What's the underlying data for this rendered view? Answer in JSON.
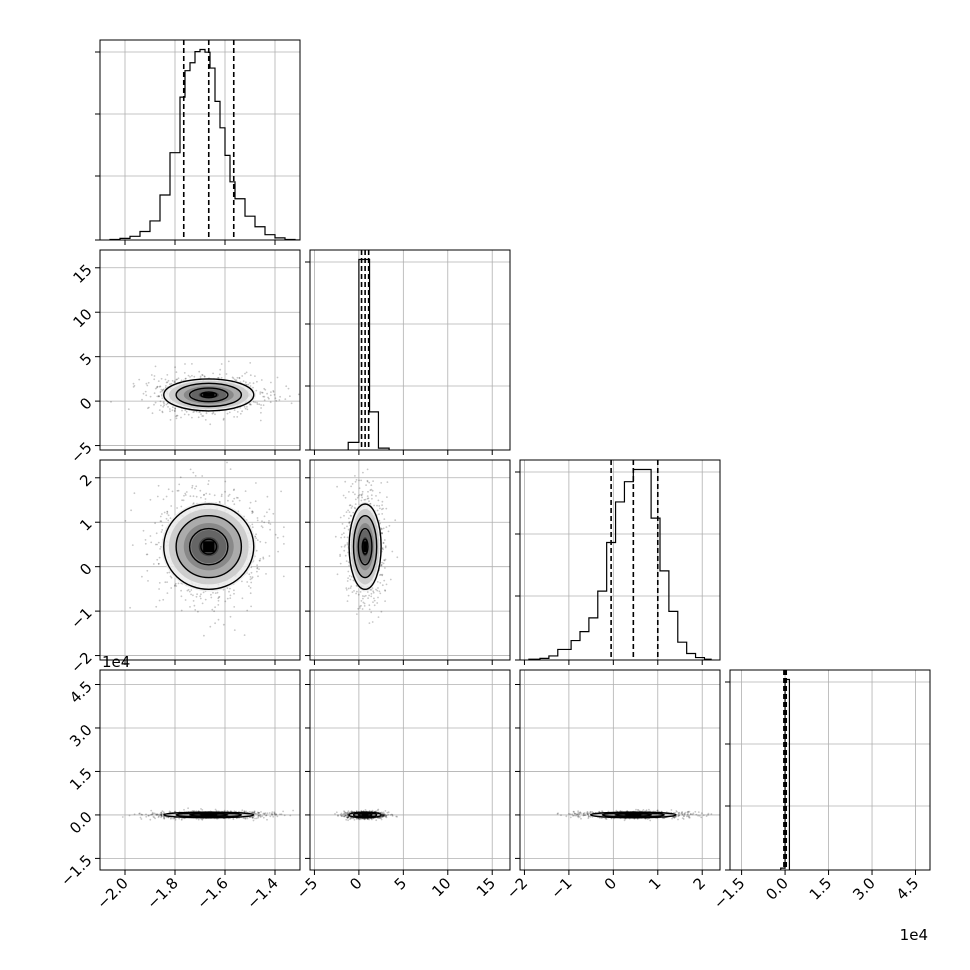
{
  "chart_data": {
    "type": "corner",
    "grid": true,
    "parameters": [
      {
        "range": [
          -2.1,
          -1.3
        ],
        "ticks": [
          -2.0,
          -1.8,
          -1.6,
          -1.4
        ],
        "tick_labels": [
          "−2.0",
          "−1.8",
          "−1.6",
          "−1.4"
        ],
        "offset_label": ""
      },
      {
        "range": [
          -5.5,
          17
        ],
        "ticks": [
          -5,
          0,
          5,
          10,
          15
        ],
        "tick_labels": [
          "−5",
          "0",
          "5",
          "10",
          "15"
        ],
        "offset_label": ""
      },
      {
        "range": [
          -2.1,
          2.4
        ],
        "ticks": [
          -2,
          -1,
          0,
          1,
          2
        ],
        "tick_labels": [
          "−2",
          "−1",
          "0",
          "1",
          "2"
        ],
        "offset_label": ""
      },
      {
        "range": [
          -1.9,
          5.0
        ],
        "ticks": [
          -1.5,
          0.0,
          1.5,
          3.0,
          4.5
        ],
        "tick_labels": [
          "−1.5",
          "0.0",
          "1.5",
          "3.0",
          "4.5"
        ],
        "offset_label": "1e4"
      }
    ],
    "histograms": [
      {
        "bin_edges": [
          -2.06,
          -2.02,
          -1.98,
          -1.94,
          -1.9,
          -1.86,
          -1.82,
          -1.78,
          -1.76,
          -1.74,
          -1.72,
          -1.7,
          -1.68,
          -1.66,
          -1.64,
          -1.62,
          -1.6,
          -1.58,
          -1.56,
          -1.52,
          -1.48,
          -1.44,
          -1.4,
          -1.36,
          -1.32
        ],
        "counts": [
          1,
          3,
          7,
          16,
          36,
          85,
          165,
          270,
          320,
          335,
          356,
          360,
          355,
          325,
          262,
          212,
          160,
          110,
          78,
          45,
          25,
          10,
          4,
          1
        ],
        "quantiles": [
          -1.765,
          -1.665,
          -1.565
        ]
      },
      {
        "bin_edges": [
          -1.2,
          0.0,
          1.2,
          2.2,
          3.4
        ],
        "counts": [
          4,
          100,
          20,
          1
        ],
        "quantiles": [
          0.3,
          0.7,
          1.1
        ]
      },
      {
        "bin_edges": [
          -1.9,
          -1.65,
          -1.45,
          -1.25,
          -0.95,
          -0.75,
          -0.55,
          -0.35,
          -0.15,
          0.05,
          0.25,
          0.45,
          0.65,
          0.85,
          1.05,
          1.25,
          1.45,
          1.65,
          1.85,
          2.05,
          2.2
        ],
        "counts": [
          1,
          2,
          5,
          13,
          24,
          35,
          52,
          85,
          145,
          195,
          220,
          235,
          235,
          175,
          110,
          60,
          22,
          8,
          3,
          1
        ],
        "quantiles": [
          -0.05,
          0.45,
          1.0
        ]
      },
      {
        "bin_edges": [
          -0.15,
          0.0,
          0.15
        ],
        "counts": [
          1,
          100
        ],
        "quantiles": [
          -0.04,
          0.0,
          0.04
        ]
      }
    ],
    "joint_distributions": [
      {
        "row": 1,
        "col": 0,
        "center": [
          -1.665,
          0.7
        ],
        "spread": [
          0.09,
          0.9
        ]
      },
      {
        "row": 2,
        "col": 0,
        "center": [
          -1.665,
          0.45
        ],
        "spread": [
          0.09,
          0.48
        ]
      },
      {
        "row": 2,
        "col": 1,
        "center": [
          0.7,
          0.45
        ],
        "spread": [
          0.9,
          0.48
        ]
      },
      {
        "row": 3,
        "col": 0,
        "center": [
          -1.665,
          0.0
        ],
        "spread": [
          0.09,
          0.05
        ]
      },
      {
        "row": 3,
        "col": 1,
        "center": [
          0.7,
          0.0
        ],
        "spread": [
          0.9,
          0.05
        ]
      },
      {
        "row": 3,
        "col": 2,
        "center": [
          0.45,
          0.0
        ],
        "spread": [
          0.48,
          0.05
        ]
      }
    ]
  }
}
